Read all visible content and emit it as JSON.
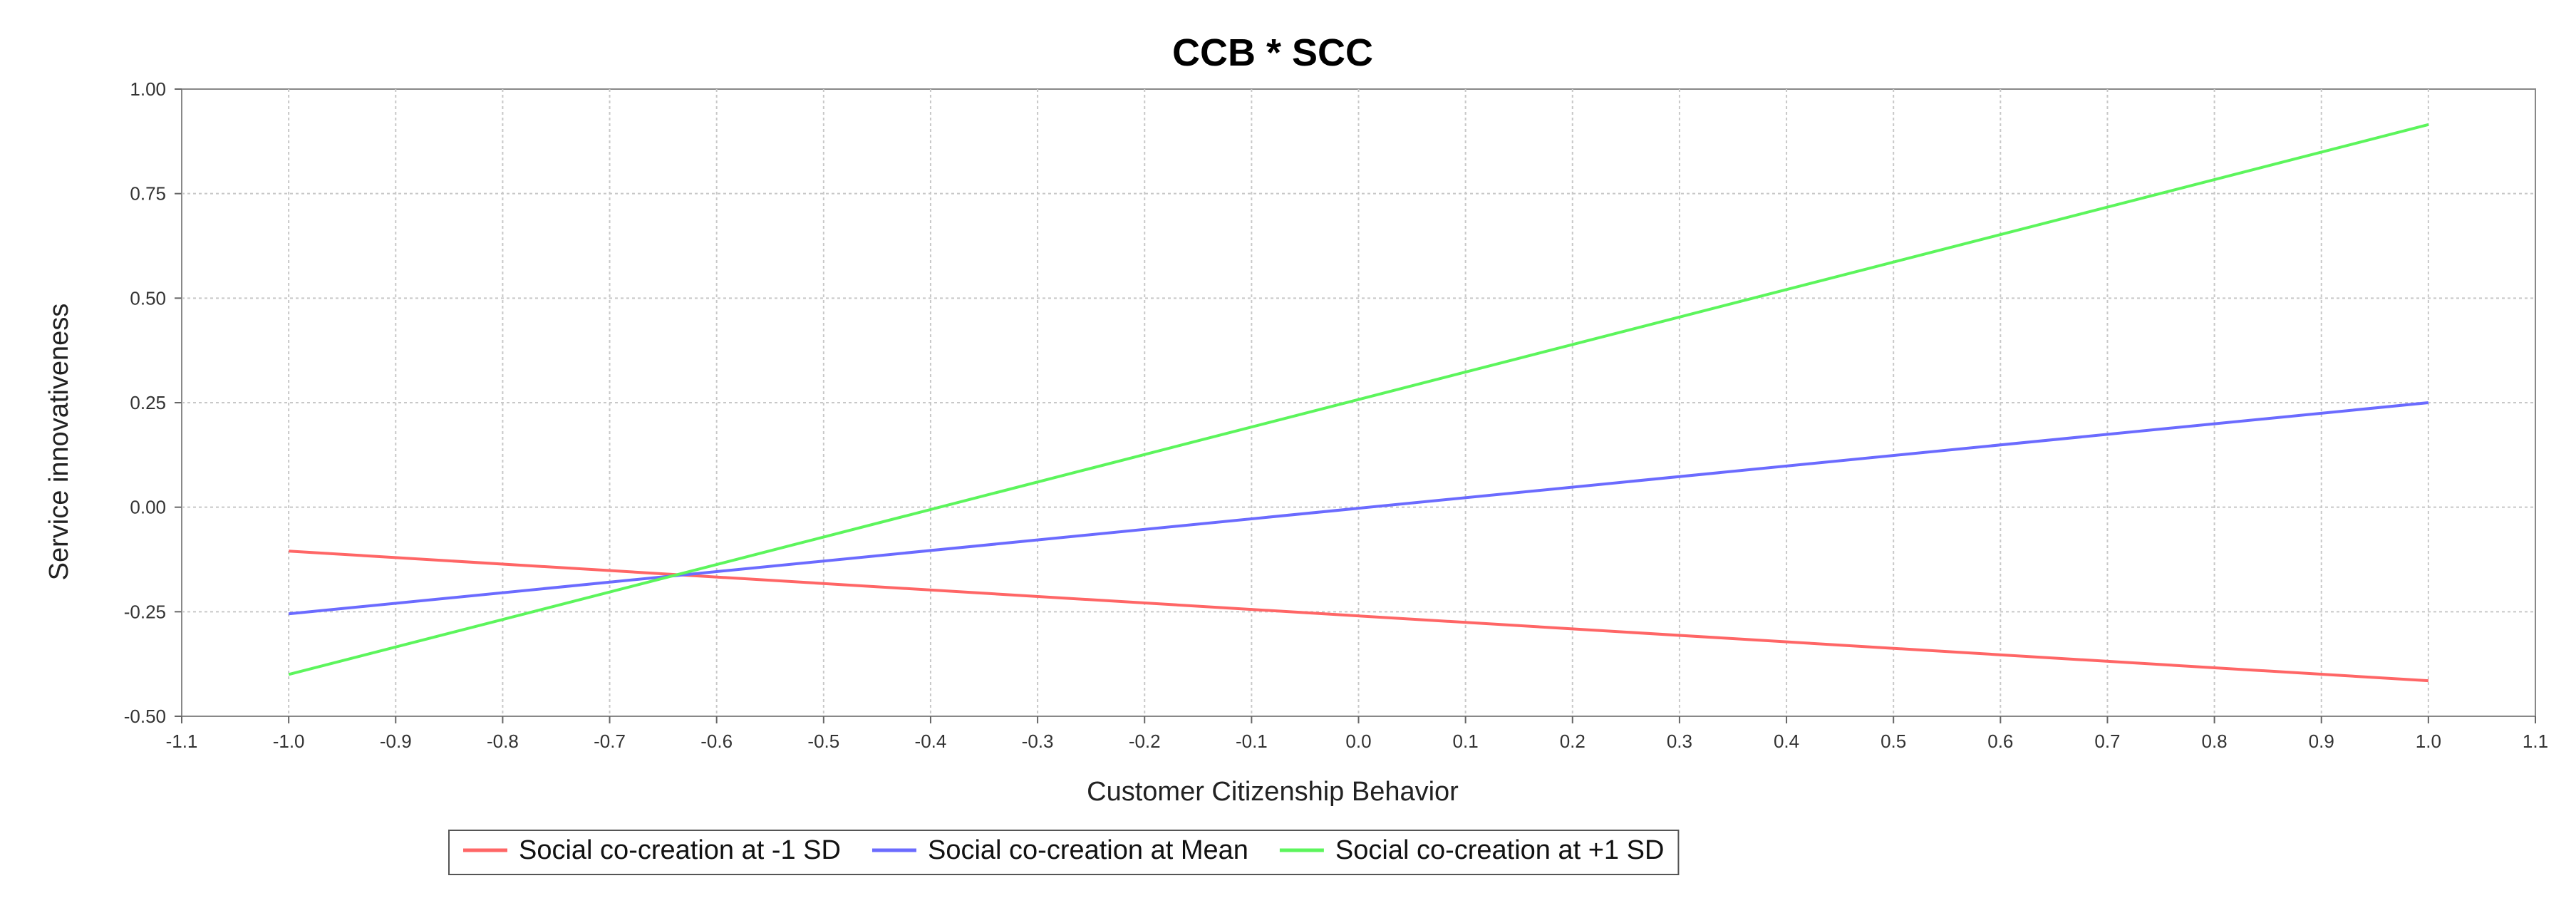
{
  "chart_data": {
    "type": "line",
    "title": "CCB * SCC",
    "xlabel": "Customer Citizenship Behavior",
    "ylabel": "Service innovativeness",
    "xlim": [
      -1.1,
      1.1
    ],
    "ylim": [
      -0.5,
      1.0
    ],
    "x_ticks": [
      -1.1,
      -1.0,
      -0.9,
      -0.8,
      -0.7,
      -0.6,
      -0.5,
      -0.4,
      -0.3,
      -0.2,
      -0.1,
      0.0,
      0.1,
      0.2,
      0.3,
      0.4,
      0.5,
      0.6,
      0.7,
      0.8,
      0.9,
      1.0,
      1.1
    ],
    "y_ticks": [
      -0.5,
      -0.25,
      0.0,
      0.25,
      0.5,
      0.75,
      1.0
    ],
    "grid": true,
    "legend_position": "bottom-center",
    "series": [
      {
        "name": "Social co-creation  at -1 SD",
        "color": "#ff6666",
        "x": [
          -1.0,
          1.0
        ],
        "y": [
          -0.105,
          -0.415
        ]
      },
      {
        "name": "Social co-creation  at Mean",
        "color": "#6b6bff",
        "x": [
          -1.0,
          1.0
        ],
        "y": [
          -0.255,
          0.25
        ]
      },
      {
        "name": "Social co-creation  at +1 SD",
        "color": "#5cf55c",
        "x": [
          -1.0,
          1.0
        ],
        "y": [
          -0.4,
          0.915
        ]
      }
    ]
  }
}
